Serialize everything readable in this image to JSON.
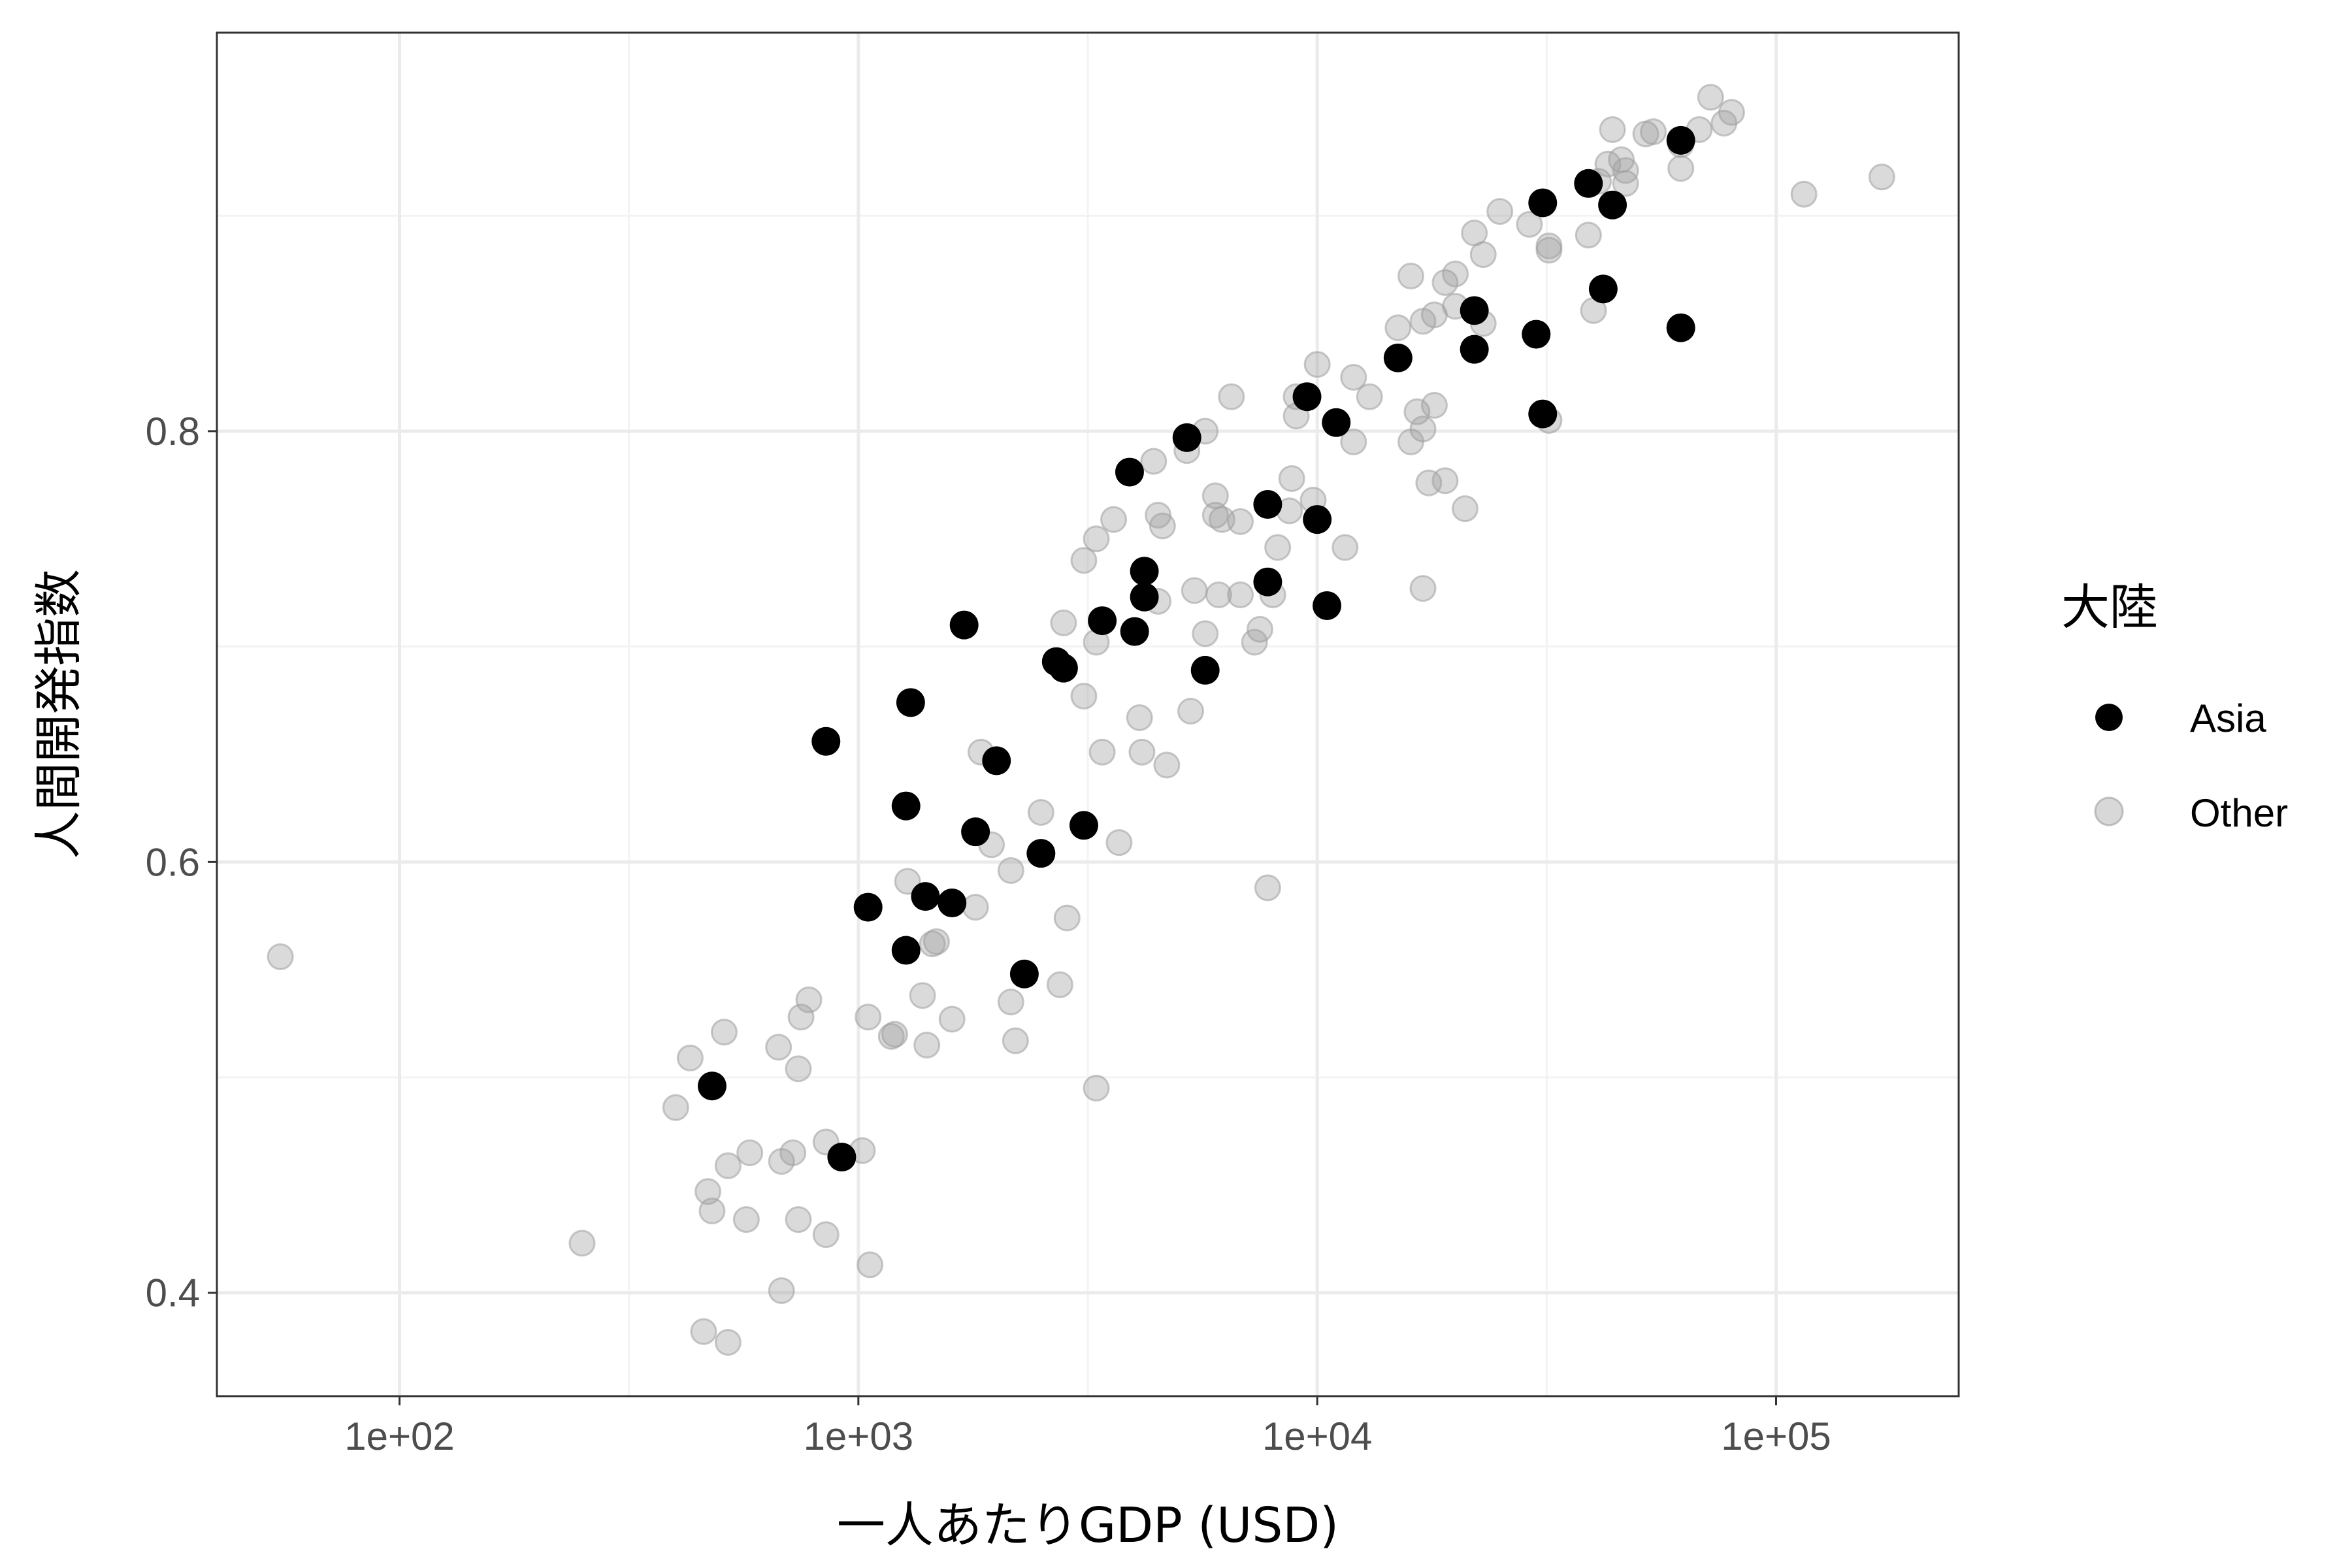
{
  "colors": {
    "asia": "#000000",
    "other": "#9e9e9e",
    "grid_major": "#ebebeb",
    "grid_minor": "#f3f3f3",
    "panel_border": "#333333",
    "tick_text": "#4d4d4d"
  },
  "chart_data": {
    "type": "scatter",
    "title": "",
    "xlabel": "一人あたりGDP (USD)",
    "ylabel": "人間開発指数",
    "x_scale": "log10",
    "xlim": [
      40,
      250000
    ],
    "ylim": [
      0.352,
      0.985
    ],
    "x_ticks": [
      {
        "value": 100,
        "label": "1e+02"
      },
      {
        "value": 1000,
        "label": "1e+03"
      },
      {
        "value": 10000,
        "label": "1e+04"
      },
      {
        "value": 100000,
        "label": "1e+05"
      }
    ],
    "y_ticks": [
      {
        "value": 0.4,
        "label": "0.4"
      },
      {
        "value": 0.6,
        "label": "0.6"
      },
      {
        "value": 0.8,
        "label": "0.8"
      }
    ],
    "grid": true,
    "legend": {
      "title": "大陸",
      "position": "right",
      "entries": [
        "Asia",
        "Other"
      ]
    },
    "series": [
      {
        "name": "Asia",
        "color": "#000000",
        "points": [
          [
            62000,
            0.935
          ],
          [
            31000,
            0.906
          ],
          [
            39000,
            0.915
          ],
          [
            44000,
            0.905
          ],
          [
            42000,
            0.866
          ],
          [
            62000,
            0.848
          ],
          [
            22000,
            0.856
          ],
          [
            30000,
            0.845
          ],
          [
            22000,
            0.838
          ],
          [
            15000,
            0.834
          ],
          [
            9500,
            0.816
          ],
          [
            31000,
            0.808
          ],
          [
            11000,
            0.804
          ],
          [
            5200,
            0.797
          ],
          [
            3900,
            0.781
          ],
          [
            7800,
            0.766
          ],
          [
            10000,
            0.759
          ],
          [
            4200,
            0.735
          ],
          [
            7800,
            0.73
          ],
          [
            4200,
            0.723
          ],
          [
            10500,
            0.719
          ],
          [
            3400,
            0.712
          ],
          [
            4000,
            0.707
          ],
          [
            1700,
            0.71
          ],
          [
            2700,
            0.693
          ],
          [
            2800,
            0.69
          ],
          [
            5700,
            0.689
          ],
          [
            1300,
            0.674
          ],
          [
            850,
            0.656
          ],
          [
            2000,
            0.647
          ],
          [
            1270,
            0.626
          ],
          [
            3100,
            0.617
          ],
          [
            1800,
            0.614
          ],
          [
            2500,
            0.604
          ],
          [
            1400,
            0.584
          ],
          [
            1600,
            0.581
          ],
          [
            1050,
            0.579
          ],
          [
            1270,
            0.559
          ],
          [
            2300,
            0.548
          ],
          [
            480,
            0.496
          ],
          [
            920,
            0.463
          ]
        ]
      },
      {
        "name": "Other",
        "color": "#9e9e9e",
        "points": [
          [
            72000,
            0.955
          ],
          [
            80000,
            0.948
          ],
          [
            77000,
            0.943
          ],
          [
            68000,
            0.94
          ],
          [
            44000,
            0.94
          ],
          [
            52000,
            0.938
          ],
          [
            54000,
            0.939
          ],
          [
            62000,
            0.933
          ],
          [
            46000,
            0.926
          ],
          [
            47000,
            0.921
          ],
          [
            43000,
            0.924
          ],
          [
            41000,
            0.916
          ],
          [
            62000,
            0.922
          ],
          [
            47000,
            0.915
          ],
          [
            115000,
            0.91
          ],
          [
            170000,
            0.918
          ],
          [
            25000,
            0.902
          ],
          [
            29000,
            0.896
          ],
          [
            22000,
            0.892
          ],
          [
            39000,
            0.891
          ],
          [
            32000,
            0.884
          ],
          [
            32000,
            0.886
          ],
          [
            23000,
            0.882
          ],
          [
            16000,
            0.872
          ],
          [
            19000,
            0.869
          ],
          [
            20000,
            0.873
          ],
          [
            17000,
            0.851
          ],
          [
            18000,
            0.854
          ],
          [
            20000,
            0.858
          ],
          [
            40000,
            0.856
          ],
          [
            15000,
            0.848
          ],
          [
            23000,
            0.85
          ],
          [
            10000,
            0.831
          ],
          [
            12000,
            0.825
          ],
          [
            13000,
            0.816
          ],
          [
            9000,
            0.816
          ],
          [
            6500,
            0.816
          ],
          [
            16500,
            0.809
          ],
          [
            9000,
            0.807
          ],
          [
            18000,
            0.812
          ],
          [
            5700,
            0.8
          ],
          [
            17000,
            0.801
          ],
          [
            12000,
            0.795
          ],
          [
            16000,
            0.795
          ],
          [
            32000,
            0.805
          ],
          [
            5200,
            0.791
          ],
          [
            4400,
            0.786
          ],
          [
            19000,
            0.777
          ],
          [
            17500,
            0.776
          ],
          [
            8800,
            0.778
          ],
          [
            6000,
            0.77
          ],
          [
            9800,
            0.768
          ],
          [
            3600,
            0.759
          ],
          [
            4500,
            0.761
          ],
          [
            6000,
            0.761
          ],
          [
            6200,
            0.759
          ],
          [
            6800,
            0.758
          ],
          [
            8700,
            0.763
          ],
          [
            21000,
            0.764
          ],
          [
            3300,
            0.75
          ],
          [
            4600,
            0.756
          ],
          [
            8200,
            0.746
          ],
          [
            11500,
            0.746
          ],
          [
            3100,
            0.74
          ],
          [
            5400,
            0.726
          ],
          [
            6100,
            0.724
          ],
          [
            6800,
            0.724
          ],
          [
            8000,
            0.724
          ],
          [
            17000,
            0.727
          ],
          [
            4500,
            0.721
          ],
          [
            7500,
            0.708
          ],
          [
            2800,
            0.711
          ],
          [
            3300,
            0.702
          ],
          [
            5700,
            0.706
          ],
          [
            7300,
            0.702
          ],
          [
            3100,
            0.677
          ],
          [
            5300,
            0.67
          ],
          [
            4100,
            0.667
          ],
          [
            1850,
            0.651
          ],
          [
            3400,
            0.651
          ],
          [
            4150,
            0.651
          ],
          [
            4700,
            0.645
          ],
          [
            2500,
            0.623
          ],
          [
            1950,
            0.608
          ],
          [
            3700,
            0.609
          ],
          [
            2150,
            0.596
          ],
          [
            1280,
            0.591
          ],
          [
            1800,
            0.579
          ],
          [
            7800,
            0.588
          ],
          [
            2850,
            0.574
          ],
          [
            1480,
            0.563
          ],
          [
            1450,
            0.562
          ],
          [
            55,
            0.556
          ],
          [
            2750,
            0.543
          ],
          [
            1380,
            0.538
          ],
          [
            2150,
            0.535
          ],
          [
            780,
            0.536
          ],
          [
            1050,
            0.528
          ],
          [
            1600,
            0.527
          ],
          [
            750,
            0.528
          ],
          [
            1200,
            0.52
          ],
          [
            1180,
            0.519
          ],
          [
            510,
            0.521
          ],
          [
            2200,
            0.517
          ],
          [
            1410,
            0.515
          ],
          [
            670,
            0.514
          ],
          [
            430,
            0.509
          ],
          [
            740,
            0.504
          ],
          [
            3300,
            0.495
          ],
          [
            400,
            0.486
          ],
          [
            850,
            0.47
          ],
          [
            1020,
            0.466
          ],
          [
            580,
            0.465
          ],
          [
            720,
            0.465
          ],
          [
            680,
            0.461
          ],
          [
            520,
            0.459
          ],
          [
            470,
            0.447
          ],
          [
            480,
            0.438
          ],
          [
            570,
            0.434
          ],
          [
            740,
            0.434
          ],
          [
            850,
            0.427
          ],
          [
            250,
            0.423
          ],
          [
            1060,
            0.413
          ],
          [
            680,
            0.401
          ],
          [
            460,
            0.382
          ],
          [
            520,
            0.377
          ]
        ]
      }
    ]
  }
}
